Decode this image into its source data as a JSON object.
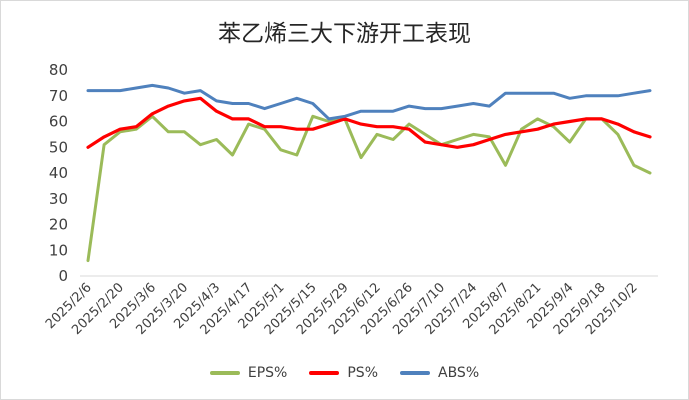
{
  "chart_data": {
    "type": "line",
    "title": "苯乙烯三大下游开工表现",
    "ylim": [
      0,
      80
    ],
    "yticks": [
      0,
      10,
      20,
      30,
      40,
      50,
      60,
      70,
      80
    ],
    "grid": "horizontal",
    "legend_position": "bottom",
    "x": [
      "2025/2/6",
      "2025/2/13",
      "2025/2/20",
      "2025/2/27",
      "2025/3/6",
      "2025/3/13",
      "2025/3/20",
      "2025/3/27",
      "2025/4/3",
      "2025/4/10",
      "2025/4/17",
      "2025/4/24",
      "2025/5/1",
      "2025/5/8",
      "2025/5/15",
      "2025/5/22",
      "2025/5/29",
      "2025/6/5",
      "2025/6/12",
      "2025/6/19",
      "2025/6/26",
      "2025/7/3",
      "2025/7/10",
      "2025/7/17",
      "2025/7/24",
      "2025/7/31",
      "2025/8/7",
      "2025/8/14",
      "2025/8/21",
      "2025/8/28",
      "2025/9/4",
      "2025/9/11",
      "2025/9/18",
      "2025/9/25",
      "2025/10/2",
      "2025/10/9"
    ],
    "xtick_labels": [
      "2025/2/6",
      "2025/2/20",
      "2025/3/6",
      "2025/3/20",
      "2025/4/3",
      "2025/4/17",
      "2025/5/1",
      "2025/5/15",
      "2025/5/29",
      "2025/6/12",
      "2025/6/26",
      "2025/7/10",
      "2025/7/24",
      "2025/8/7",
      "2025/8/21",
      "2025/9/4",
      "2025/9/18",
      "2025/10/2"
    ],
    "series": [
      {
        "name": "EPS%",
        "color": "#9bbb59",
        "values": [
          6,
          51,
          56,
          57,
          62,
          56,
          56,
          51,
          53,
          47,
          59,
          57,
          49,
          47,
          62,
          60,
          61,
          46,
          55,
          53,
          59,
          55,
          51,
          53,
          55,
          54,
          43,
          57,
          61,
          58,
          52,
          61,
          61,
          55,
          43,
          40
        ]
      },
      {
        "name": "PS%",
        "color": "#ff0000",
        "values": [
          50,
          54,
          57,
          58,
          63,
          66,
          68,
          69,
          64,
          61,
          61,
          58,
          58,
          57,
          57,
          59,
          61,
          59,
          58,
          58,
          57,
          52,
          51,
          50,
          51,
          53,
          55,
          56,
          57,
          59,
          60,
          61,
          61,
          59,
          56,
          54
        ]
      },
      {
        "name": "ABS%",
        "color": "#4f81bd",
        "values": [
          72,
          72,
          72,
          73,
          74,
          73,
          71,
          72,
          68,
          67,
          67,
          65,
          67,
          69,
          67,
          61,
          62,
          64,
          64,
          64,
          66,
          65,
          65,
          66,
          67,
          66,
          71,
          71,
          71,
          71,
          69,
          70,
          70,
          70,
          71,
          72
        ]
      }
    ]
  }
}
